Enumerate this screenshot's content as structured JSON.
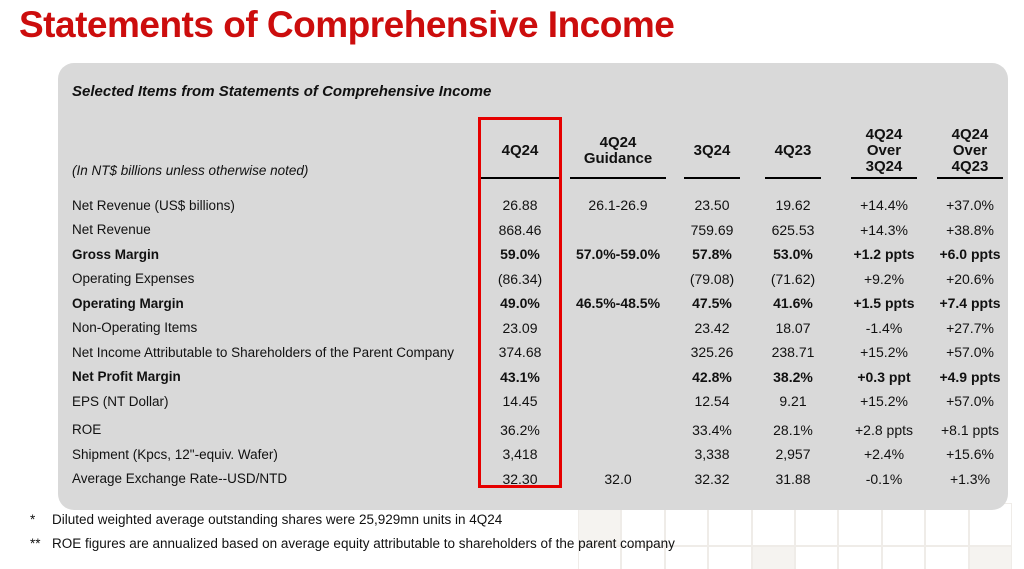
{
  "page": {
    "title": "Statements of Comprehensive Income"
  },
  "colors": {
    "title_red": "#CC0D0D",
    "highlight_red": "#E60000",
    "panel_gray": "#D9D9D9"
  },
  "table": {
    "subtitle": "Selected Items from Statements of Comprehensive Income",
    "units_note": "(In NT$ billions unless otherwise noted)",
    "columns": [
      {
        "id": "4q24",
        "lines": [
          "4Q24"
        ],
        "highlighted": true
      },
      {
        "id": "4q24-guidance",
        "lines": [
          "4Q24",
          "Guidance"
        ],
        "highlighted": false
      },
      {
        "id": "3q24",
        "lines": [
          "3Q24"
        ],
        "highlighted": false
      },
      {
        "id": "4q23",
        "lines": [
          "4Q23"
        ],
        "highlighted": false
      },
      {
        "id": "4q24-over-3q24",
        "lines": [
          "4Q24",
          "Over",
          "3Q24"
        ],
        "highlighted": false
      },
      {
        "id": "4q24-over-4q23",
        "lines": [
          "4Q24",
          "Over",
          "4Q23"
        ],
        "highlighted": false
      }
    ],
    "rows": [
      {
        "label": "Net Revenue (US$ billions)",
        "bold": false,
        "values": [
          "26.88",
          "26.1-26.9",
          "23.50",
          "19.62",
          "+14.4%",
          "+37.0%"
        ]
      },
      {
        "label": "Net Revenue",
        "bold": false,
        "values": [
          "868.46",
          "",
          "759.69",
          "625.53",
          "+14.3%",
          "+38.8%"
        ]
      },
      {
        "label": "Gross Margin",
        "bold": true,
        "values": [
          "59.0%",
          "57.0%-59.0%",
          "57.8%",
          "53.0%",
          "+1.2 ppts",
          "+6.0 ppts"
        ]
      },
      {
        "label": "Operating Expenses",
        "bold": false,
        "values": [
          "(86.34)",
          "",
          "(79.08)",
          "(71.62)",
          "+9.2%",
          "+20.6%"
        ]
      },
      {
        "label": "Operating Margin",
        "bold": true,
        "values": [
          "49.0%",
          "46.5%-48.5%",
          "47.5%",
          "41.6%",
          "+1.5 ppts",
          "+7.4 ppts"
        ]
      },
      {
        "label": "Non-Operating Items",
        "bold": false,
        "values": [
          "23.09",
          "",
          "23.42",
          "18.07",
          "-1.4%",
          "+27.7%"
        ]
      },
      {
        "label": "Net Income Attributable to Shareholders of the Parent Company",
        "bold": false,
        "values": [
          "374.68",
          "",
          "325.26",
          "238.71",
          "+15.2%",
          "+57.0%"
        ]
      },
      {
        "label": "Net Profit Margin",
        "bold": true,
        "values": [
          "43.1%",
          "",
          "42.8%",
          "38.2%",
          "+0.3 ppt",
          "+4.9 ppts"
        ]
      },
      {
        "label": "EPS (NT Dollar)",
        "bold": false,
        "values": [
          "14.45",
          "",
          "12.54",
          "9.21",
          "+15.2%",
          "+57.0%"
        ]
      },
      {
        "label": "ROE",
        "bold": false,
        "gap_above": true,
        "values": [
          "36.2%",
          "",
          "33.4%",
          "28.1%",
          "+2.8 ppts",
          "+8.1 ppts"
        ]
      },
      {
        "label": "Shipment (Kpcs, 12\"-equiv. Wafer)",
        "bold": false,
        "values": [
          "3,418",
          "",
          "3,338",
          "2,957",
          "+2.4%",
          "+15.6%"
        ]
      },
      {
        "label": "Average Exchange Rate--USD/NTD",
        "bold": false,
        "values": [
          "32.30",
          "32.0",
          "32.32",
          "31.88",
          "-0.1%",
          "+1.3%"
        ]
      }
    ]
  },
  "footnotes": [
    {
      "marker": "*",
      "text": "Diluted weighted average outstanding shares were 25,929mn units in 4Q24"
    },
    {
      "marker": "**",
      "text": "ROE figures are annualized based on average equity attributable to shareholders of the parent company"
    }
  ],
  "chart_data": {
    "type": "table",
    "title": "Selected Items from Statements of Comprehensive Income",
    "columns": [
      "4Q24",
      "4Q24 Guidance",
      "3Q24",
      "4Q23",
      "4Q24 Over 3Q24",
      "4Q24 Over 4Q23"
    ],
    "row_labels": [
      "Net Revenue (US$ billions)",
      "Net Revenue",
      "Gross Margin",
      "Operating Expenses",
      "Operating Margin",
      "Non-Operating Items",
      "Net Income Attributable to Shareholders of the Parent Company",
      "Net Profit Margin",
      "EPS (NT Dollar)",
      "ROE",
      "Shipment (Kpcs, 12\"-equiv. Wafer)",
      "Average Exchange Rate--USD/NTD"
    ],
    "values": [
      [
        "26.88",
        "26.1-26.9",
        "23.50",
        "19.62",
        "+14.4%",
        "+37.0%"
      ],
      [
        "868.46",
        "",
        "759.69",
        "625.53",
        "+14.3%",
        "+38.8%"
      ],
      [
        "59.0%",
        "57.0%-59.0%",
        "57.8%",
        "53.0%",
        "+1.2 ppts",
        "+6.0 ppts"
      ],
      [
        "(86.34)",
        "",
        "(79.08)",
        "(71.62)",
        "+9.2%",
        "+20.6%"
      ],
      [
        "49.0%",
        "46.5%-48.5%",
        "47.5%",
        "41.6%",
        "+1.5 ppts",
        "+7.4 ppts"
      ],
      [
        "23.09",
        "",
        "23.42",
        "18.07",
        "-1.4%",
        "+27.7%"
      ],
      [
        "374.68",
        "",
        "325.26",
        "238.71",
        "+15.2%",
        "+57.0%"
      ],
      [
        "43.1%",
        "",
        "42.8%",
        "38.2%",
        "+0.3 ppt",
        "+4.9 ppts"
      ],
      [
        "14.45",
        "",
        "12.54",
        "9.21",
        "+15.2%",
        "+57.0%"
      ],
      [
        "36.2%",
        "",
        "33.4%",
        "28.1%",
        "+2.8 ppts",
        "+8.1 ppts"
      ],
      [
        "3,418",
        "",
        "3,338",
        "2,957",
        "+2.4%",
        "+15.6%"
      ],
      [
        "32.30",
        "32.0",
        "32.32",
        "31.88",
        "-0.1%",
        "+1.3%"
      ]
    ]
  }
}
